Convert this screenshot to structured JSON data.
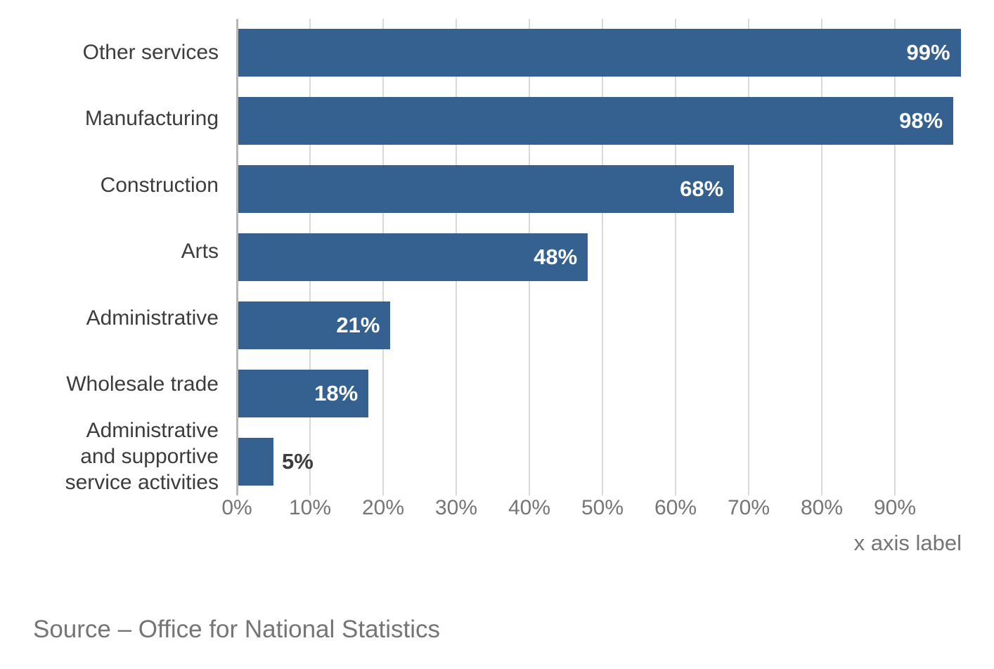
{
  "chart_data": {
    "type": "bar",
    "orientation": "horizontal",
    "title": "",
    "xlabel": "x axis label",
    "ylabel": "",
    "xlim": [
      0,
      100
    ],
    "grid": true,
    "legend": false,
    "bar_color": "#34618f",
    "categories": [
      "Other services",
      "Manufacturing",
      "Construction",
      "Arts",
      "Administrative",
      "Wholesale trade",
      "Administrative and supportive service activities"
    ],
    "category_display_lines": [
      [
        "Other services"
      ],
      [
        "Manufacturing"
      ],
      [
        "Construction"
      ],
      [
        "Arts"
      ],
      [
        "Administrative"
      ],
      [
        "Wholesale trade"
      ],
      [
        "Administrative",
        "and supportive",
        "service activities"
      ]
    ],
    "values": [
      99,
      98,
      68,
      48,
      21,
      18,
      5
    ],
    "value_labels": [
      "99%",
      "98%",
      "68%",
      "48%",
      "21%",
      "18%",
      "5%"
    ],
    "value_label_inside_threshold": 10,
    "x_ticks": [
      "0%",
      "10%",
      "20%",
      "30%",
      "40%",
      "50%",
      "60%",
      "70%",
      "80%",
      "90%"
    ],
    "x_tick_values": [
      0,
      10,
      20,
      30,
      40,
      50,
      60,
      70,
      80,
      90
    ]
  },
  "source_note": "Source – Office for National Statistics",
  "colors": {
    "bar": "#34618f",
    "category_text": "#3c3c3c",
    "tick_text": "#757575",
    "gridline": "#d8d8d8",
    "axis_line": "#b8b8b8",
    "value_inside": "#ffffff",
    "value_outside": "#3c3c3c"
  }
}
